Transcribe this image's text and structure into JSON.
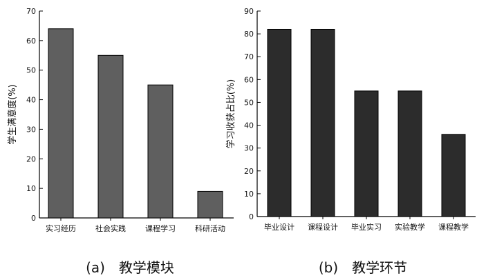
{
  "chart_data": [
    {
      "type": "bar",
      "caption": "(a)　教学模块",
      "ylabel": "学生满意度(%)",
      "ylim": [
        0,
        70
      ],
      "yticks": [
        0,
        10,
        20,
        30,
        40,
        50,
        60,
        70
      ],
      "categories": [
        "实习经历",
        "社会实践",
        "课程学习",
        "科研活动"
      ],
      "values": [
        64,
        55,
        45,
        9
      ],
      "bar_color": "#5f5f5f",
      "grid": false
    },
    {
      "type": "bar",
      "caption": "(b)　教学环节",
      "ylabel": "学习收获占比(%)",
      "ylim": [
        0,
        90
      ],
      "yticks": [
        0,
        10,
        20,
        30,
        40,
        50,
        60,
        70,
        80,
        90
      ],
      "categories": [
        "毕业设计",
        "课程设计",
        "毕业实习",
        "实验教学",
        "课程教学"
      ],
      "values": [
        82,
        82,
        55,
        55,
        36
      ],
      "bar_color": "#2c2c2c",
      "grid": false
    }
  ]
}
